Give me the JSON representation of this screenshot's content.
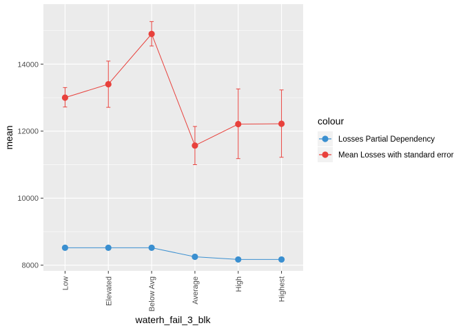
{
  "chart_data": {
    "type": "line",
    "xlabel": "waterh_fail_3_blk",
    "ylabel": "mean",
    "categories": [
      "Low",
      "Elevated",
      "Below Avg",
      "Average",
      "High",
      "Highest"
    ],
    "ylim": [
      7830,
      15790
    ],
    "yticks": [
      8000,
      10000,
      12000,
      14000
    ],
    "ytick_labels": [
      "8000",
      "10000",
      "12000",
      "14000"
    ],
    "grid": true,
    "legend_position": "right",
    "legend_title": "colour",
    "series": [
      {
        "name": "Losses Partial Dependency",
        "color": "#3a8fd0",
        "values": [
          8520,
          8520,
          8520,
          8250,
          8170,
          8170
        ]
      },
      {
        "name": "Mean Losses with standard error",
        "color": "#e8413c",
        "values": [
          13000,
          13400,
          14900,
          11570,
          12210,
          12220
        ],
        "error_low": [
          12720,
          12710,
          14540,
          11000,
          11180,
          11220
        ],
        "error_high": [
          13300,
          14090,
          15270,
          12140,
          13260,
          13230
        ]
      }
    ]
  }
}
